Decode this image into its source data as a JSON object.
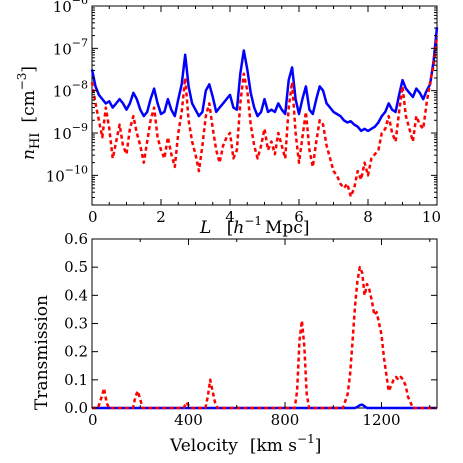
{
  "chart_data": [
    {
      "type": "line",
      "xlabel": "L [h^-1 Mpc]",
      "xlabel_parts": {
        "var": "L",
        "open": "[",
        "h": "h",
        "exp": "−1",
        "unit": "Mpc",
        "close": "]"
      },
      "ylabel_parts": {
        "var": "n",
        "sub": "HI",
        "open": "[cm",
        "exp": "−3",
        "close": "]"
      },
      "yscale": "log",
      "xlim": [
        0,
        10
      ],
      "ylim_log10": [
        -10.7,
        -6
      ],
      "x_ticks": [
        "0",
        "2",
        "4",
        "6",
        "8",
        "10"
      ],
      "y_tick_exponents": [
        "−10",
        "−9",
        "−8",
        "−7",
        "−6"
      ],
      "grid": false,
      "series": [
        {
          "color": "#0000ff",
          "style": "solid",
          "x": [
            0,
            0.1,
            0.2,
            0.3,
            0.4,
            0.5,
            0.6,
            0.7,
            0.8,
            0.9,
            1.0,
            1.1,
            1.2,
            1.3,
            1.4,
            1.5,
            1.6,
            1.7,
            1.8,
            1.9,
            2.0,
            2.1,
            2.2,
            2.3,
            2.4,
            2.5,
            2.6,
            2.7,
            2.8,
            2.9,
            3.0,
            3.1,
            3.2,
            3.3,
            3.4,
            3.5,
            3.6,
            3.7,
            3.8,
            3.9,
            4.0,
            4.1,
            4.2,
            4.3,
            4.4,
            4.5,
            4.6,
            4.7,
            4.8,
            4.9,
            5.0,
            5.1,
            5.2,
            5.3,
            5.4,
            5.5,
            5.6,
            5.7,
            5.8,
            5.9,
            6.0,
            6.1,
            6.2,
            6.3,
            6.4,
            6.5,
            6.6,
            6.7,
            6.8,
            6.9,
            7.0,
            7.1,
            7.2,
            7.3,
            7.4,
            7.5,
            7.6,
            7.7,
            7.8,
            7.9,
            8.0,
            8.1,
            8.2,
            8.3,
            8.4,
            8.5,
            8.6,
            8.7,
            8.8,
            8.9,
            9.0,
            9.1,
            9.2,
            9.3,
            9.4,
            9.5,
            9.6,
            9.7,
            9.8,
            9.9,
            10.0
          ],
          "log10_y": [
            -7.5,
            -7.9,
            -8.1,
            -8.2,
            -8.3,
            -8.25,
            -8.4,
            -8.3,
            -8.2,
            -8.3,
            -8.45,
            -8.3,
            -8.05,
            -8.2,
            -8.45,
            -8.6,
            -8.5,
            -8.2,
            -7.95,
            -8.3,
            -8.55,
            -8.5,
            -8.2,
            -8.45,
            -8.6,
            -8.2,
            -7.85,
            -7.15,
            -7.9,
            -8.3,
            -8.45,
            -8.6,
            -8.5,
            -8.0,
            -7.85,
            -8.15,
            -8.5,
            -8.4,
            -8.3,
            -8.2,
            -8.1,
            -8.4,
            -8.45,
            -7.6,
            -7.05,
            -7.5,
            -8.05,
            -8.4,
            -8.6,
            -8.5,
            -8.2,
            -8.5,
            -8.45,
            -8.5,
            -8.3,
            -8.45,
            -8.55,
            -7.75,
            -7.45,
            -8.2,
            -8.55,
            -8.2,
            -7.9,
            -8.45,
            -8.55,
            -8.2,
            -7.9,
            -8.0,
            -8.3,
            -8.4,
            -8.5,
            -8.55,
            -8.6,
            -8.7,
            -8.75,
            -8.72,
            -8.8,
            -8.85,
            -8.95,
            -8.9,
            -8.95,
            -8.9,
            -8.85,
            -8.75,
            -8.6,
            -8.5,
            -8.3,
            -8.45,
            -8.5,
            -8.1,
            -7.75,
            -7.95,
            -8.05,
            -8.15,
            -7.95,
            -8.05,
            -8.2,
            -8.0,
            -7.85,
            -7.3,
            -6.5
          ]
        },
        {
          "color": "#ff0000",
          "style": "dashed",
          "x": [
            0,
            0.1,
            0.2,
            0.3,
            0.4,
            0.5,
            0.6,
            0.7,
            0.8,
            0.9,
            1.0,
            1.1,
            1.2,
            1.3,
            1.4,
            1.5,
            1.6,
            1.7,
            1.8,
            1.9,
            2.0,
            2.1,
            2.2,
            2.3,
            2.4,
            2.5,
            2.6,
            2.7,
            2.8,
            2.9,
            3.0,
            3.1,
            3.2,
            3.3,
            3.4,
            3.5,
            3.6,
            3.7,
            3.8,
            3.9,
            4.0,
            4.1,
            4.2,
            4.3,
            4.4,
            4.5,
            4.6,
            4.7,
            4.8,
            4.9,
            5.0,
            5.1,
            5.2,
            5.3,
            5.4,
            5.5,
            5.6,
            5.7,
            5.8,
            5.9,
            6.0,
            6.1,
            6.2,
            6.3,
            6.4,
            6.5,
            6.6,
            6.7,
            6.8,
            6.9,
            7.0,
            7.1,
            7.2,
            7.3,
            7.4,
            7.5,
            7.6,
            7.7,
            7.8,
            7.9,
            8.0,
            8.1,
            8.2,
            8.3,
            8.4,
            8.5,
            8.6,
            8.7,
            8.8,
            8.9,
            9.0,
            9.1,
            9.2,
            9.3,
            9.4,
            9.5,
            9.6,
            9.7,
            9.8,
            9.9,
            10.0
          ],
          "log10_y": [
            -7.8,
            -8.3,
            -8.7,
            -9.1,
            -8.4,
            -8.9,
            -9.6,
            -9.2,
            -8.8,
            -9.3,
            -9.5,
            -8.9,
            -8.6,
            -9.0,
            -9.3,
            -9.7,
            -9.2,
            -8.7,
            -8.4,
            -9.1,
            -9.4,
            -9.6,
            -9.1,
            -9.5,
            -9.8,
            -9.0,
            -8.5,
            -7.7,
            -8.7,
            -9.2,
            -9.5,
            -9.9,
            -9.3,
            -8.6,
            -8.3,
            -8.9,
            -9.4,
            -9.7,
            -9.3,
            -9.1,
            -9.0,
            -9.6,
            -9.4,
            -8.3,
            -7.6,
            -8.0,
            -8.8,
            -9.3,
            -9.6,
            -9.3,
            -8.9,
            -9.4,
            -9.2,
            -9.5,
            -9.0,
            -9.3,
            -9.6,
            -8.4,
            -7.8,
            -9.0,
            -9.7,
            -9.1,
            -8.5,
            -9.4,
            -9.8,
            -9.2,
            -8.7,
            -8.8,
            -9.3,
            -9.6,
            -9.9,
            -10.0,
            -10.2,
            -10.3,
            -10.2,
            -10.5,
            -10.3,
            -9.9,
            -10.1,
            -9.7,
            -10.0,
            -9.6,
            -9.5,
            -9.4,
            -9.0,
            -8.9,
            -8.6,
            -9.0,
            -9.2,
            -8.5,
            -7.9,
            -8.6,
            -8.9,
            -9.2,
            -8.6,
            -8.8,
            -8.9,
            -8.3,
            -7.8,
            -7.4,
            -6.7
          ]
        }
      ]
    },
    {
      "type": "line",
      "xlabel": "Velocity [km s^-1]",
      "xlabel_parts": {
        "text": "Velocity",
        "unit": "[km s",
        "exp": "−1",
        "close": "]"
      },
      "ylabel": "Transmission",
      "xlim": [
        0,
        1430
      ],
      "ylim": [
        0,
        0.6
      ],
      "x_ticks": [
        "0",
        "400",
        "800",
        "1200"
      ],
      "y_ticks": [
        "0.0",
        "0.1",
        "0.2",
        "0.3",
        "0.4",
        "0.5",
        "0.6"
      ],
      "grid": false,
      "series": [
        {
          "color": "#0000ff",
          "style": "solid",
          "x": [
            0,
            1080,
            1090,
            1100,
            1110,
            1120,
            1130,
            1140,
            1430
          ],
          "y": [
            0,
            0,
            0,
            0.004,
            0.01,
            0.012,
            0.006,
            0,
            0
          ]
        },
        {
          "color": "#ff0000",
          "style": "dashed",
          "x": [
            0,
            10,
            25,
            40,
            50,
            60,
            70,
            80,
            170,
            180,
            190,
            200,
            210,
            380,
            390,
            400,
            410,
            470,
            480,
            490,
            500,
            510,
            520,
            530,
            840,
            850,
            860,
            870,
            880,
            890,
            900,
            1040,
            1060,
            1070,
            1080,
            1090,
            1100,
            1110,
            1120,
            1130,
            1140,
            1150,
            1160,
            1170,
            1180,
            1190,
            1200,
            1210,
            1220,
            1230,
            1240,
            1250,
            1260,
            1270,
            1280,
            1290,
            1300,
            1310,
            1320,
            1330,
            1430
          ],
          "y": [
            0,
            0,
            0,
            0.04,
            0.07,
            0.02,
            0,
            0,
            0,
            0.04,
            0.06,
            0.03,
            0,
            0,
            0.02,
            0.01,
            0,
            0,
            0.04,
            0.1,
            0.06,
            0.02,
            0,
            0,
            0,
            0.06,
            0.24,
            0.31,
            0.22,
            0.05,
            0,
            0,
            0.05,
            0.12,
            0.24,
            0.36,
            0.45,
            0.5,
            0.48,
            0.4,
            0.44,
            0.42,
            0.38,
            0.33,
            0.34,
            0.3,
            0.26,
            0.18,
            0.12,
            0.06,
            0.08,
            0.1,
            0.11,
            0.1,
            0.11,
            0.1,
            0.08,
            0.04,
            0.02,
            0,
            0
          ]
        }
      ]
    }
  ]
}
